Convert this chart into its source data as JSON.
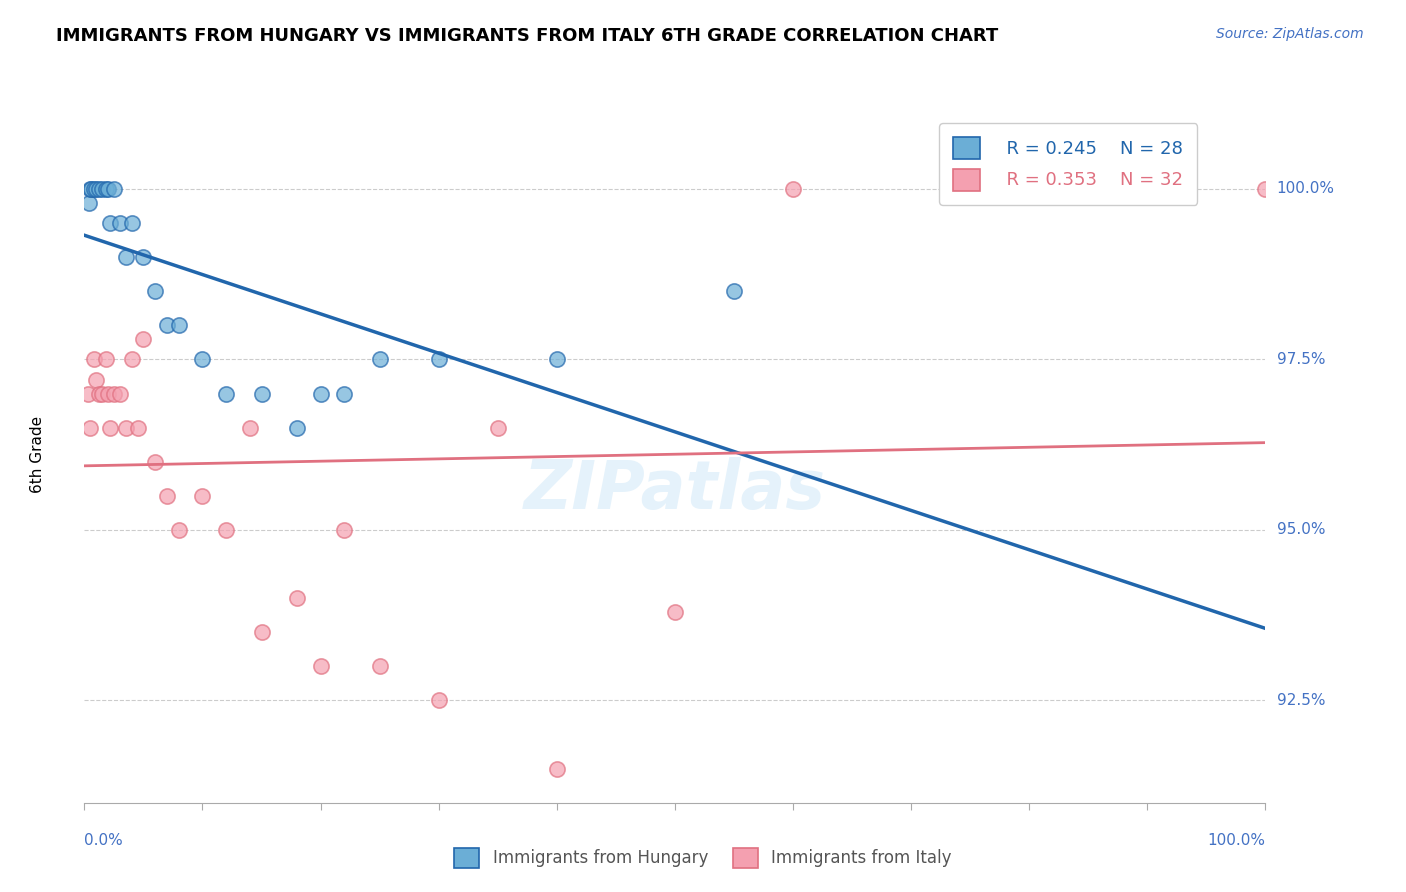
{
  "title": "IMMIGRANTS FROM HUNGARY VS IMMIGRANTS FROM ITALY 6TH GRADE CORRELATION CHART",
  "source_text": "Source: ZipAtlas.com",
  "ylabel": "6th Grade",
  "ylabel_right_ticks": [
    92.5,
    95.0,
    97.5,
    100.0
  ],
  "ylabel_right_labels": [
    "92.5%",
    "95.0%",
    "97.5%",
    "100.0%"
  ],
  "xmin": 0.0,
  "xmax": 100.0,
  "ymin": 91.0,
  "ymax": 101.2,
  "blue_label": "Immigrants from Hungary",
  "pink_label": "Immigrants from Italy",
  "blue_color": "#6baed6",
  "pink_color": "#f4a0b0",
  "blue_line_color": "#2166ac",
  "pink_line_color": "#e07080",
  "legend_R_blue": "R = 0.245",
  "legend_N_blue": "N = 28",
  "legend_R_pink": "R = 0.353",
  "legend_N_pink": "N = 32",
  "blue_x": [
    0.4,
    0.5,
    0.6,
    0.8,
    1.0,
    1.2,
    1.5,
    1.8,
    2.0,
    2.2,
    2.5,
    3.0,
    3.5,
    4.0,
    5.0,
    6.0,
    7.0,
    8.0,
    10.0,
    12.0,
    15.0,
    18.0,
    20.0,
    22.0,
    25.0,
    30.0,
    40.0,
    55.0
  ],
  "blue_y": [
    99.8,
    100.0,
    100.0,
    100.0,
    100.0,
    100.0,
    100.0,
    100.0,
    100.0,
    99.5,
    100.0,
    99.5,
    99.0,
    99.5,
    99.0,
    98.5,
    98.0,
    98.0,
    97.5,
    97.0,
    97.0,
    96.5,
    97.0,
    97.0,
    97.5,
    97.5,
    97.5,
    98.5
  ],
  "pink_x": [
    0.3,
    0.5,
    0.8,
    1.0,
    1.2,
    1.5,
    1.8,
    2.0,
    2.2,
    2.5,
    3.0,
    3.5,
    4.0,
    4.5,
    5.0,
    6.0,
    7.0,
    8.0,
    10.0,
    12.0,
    14.0,
    15.0,
    18.0,
    20.0,
    22.0,
    25.0,
    30.0,
    35.0,
    40.0,
    50.0,
    60.0,
    100.0
  ],
  "pink_y": [
    97.0,
    96.5,
    97.5,
    97.2,
    97.0,
    97.0,
    97.5,
    97.0,
    96.5,
    97.0,
    97.0,
    96.5,
    97.5,
    96.5,
    97.8,
    96.0,
    95.5,
    95.0,
    95.5,
    95.0,
    96.5,
    93.5,
    94.0,
    93.0,
    95.0,
    93.0,
    92.5,
    96.5,
    91.5,
    93.8,
    100.0,
    100.0
  ]
}
